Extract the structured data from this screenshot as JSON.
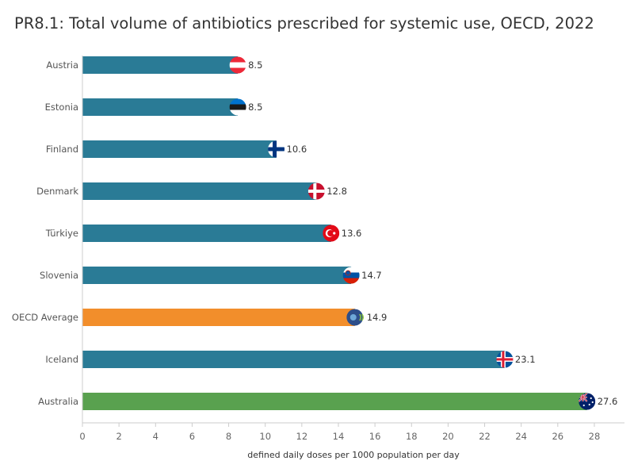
{
  "chart_data": {
    "type": "bar",
    "orientation": "horizontal",
    "title": "PR8.1: Total volume of antibiotics prescribed for systemic use, OECD, 2022",
    "xlabel": "defined daily doses per 1000 population per day",
    "ylabel": "",
    "xlim": [
      0,
      29
    ],
    "xticks": [
      0,
      2,
      4,
      6,
      8,
      10,
      12,
      14,
      16,
      18,
      20,
      22,
      24,
      26,
      28
    ],
    "grid": false,
    "legend": "none",
    "categories": [
      "Austria",
      "Estonia",
      "Finland",
      "Denmark",
      "Türkiye",
      "Slovenia",
      "OECD Average",
      "Iceland",
      "Australia"
    ],
    "values": [
      8.5,
      8.5,
      10.6,
      12.8,
      13.6,
      14.7,
      14.9,
      23.1,
      27.6
    ],
    "value_labels": [
      "8.5",
      "8.5",
      "10.6",
      "12.8",
      "13.6",
      "14.7",
      "14.9",
      "23.1",
      "27.6"
    ],
    "bar_colors": [
      "#2a7b96",
      "#2a7b96",
      "#2a7b96",
      "#2a7b96",
      "#2a7b96",
      "#2a7b96",
      "#f28e2b",
      "#2a7b96",
      "#59a14f"
    ],
    "flag_icons": [
      "austria-flag-icon",
      "estonia-flag-icon",
      "finland-flag-icon",
      "denmark-flag-icon",
      "turkiye-flag-icon",
      "slovenia-flag-icon",
      "oecd-logo-icon",
      "iceland-flag-icon",
      "australia-flag-icon"
    ]
  }
}
